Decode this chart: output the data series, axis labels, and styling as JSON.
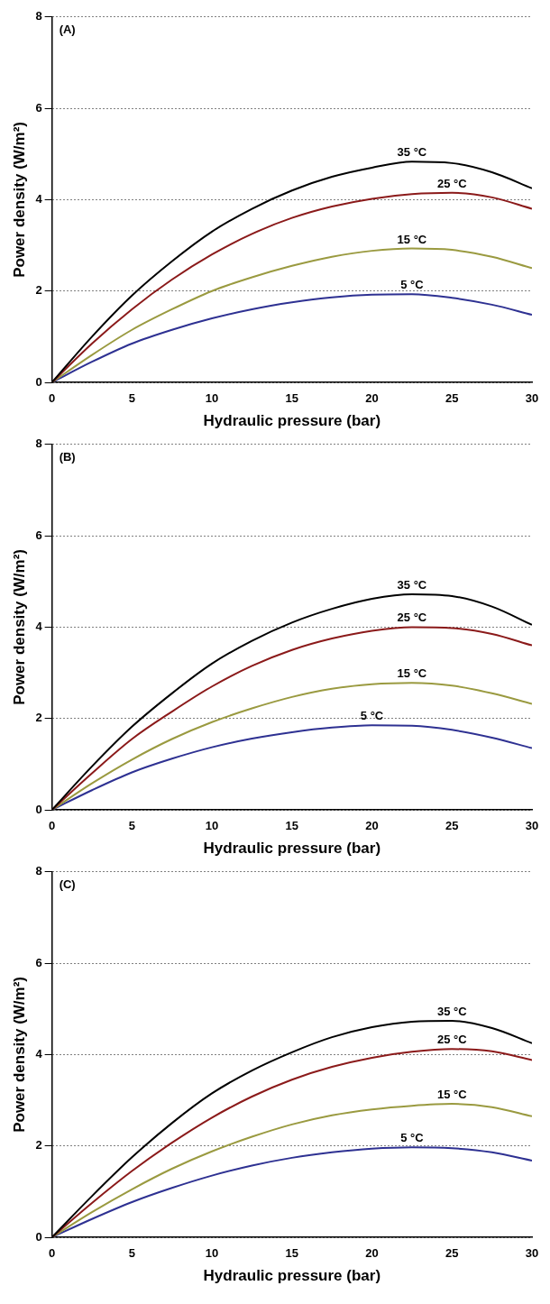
{
  "chart_data": [
    {
      "type": "line",
      "annotations": [
        "(A)"
      ],
      "xlabel": "Hydraulic pressure (bar)",
      "ylabel": "Power density (W/m²)",
      "x": [
        0,
        2.5,
        5,
        7.5,
        10,
        12.5,
        15,
        17.5,
        20,
        22.5,
        25,
        27.5,
        30
      ],
      "xlim": [
        0,
        30
      ],
      "xticks": [
        0,
        5,
        10,
        15,
        20,
        25,
        30
      ],
      "ylim": [
        0,
        8
      ],
      "yticks": [
        0,
        2,
        4,
        6,
        8
      ],
      "grid": "y",
      "series": [
        {
          "name": "35 °C",
          "color": "#000000",
          "values": [
            0,
            1.0,
            1.9,
            2.65,
            3.3,
            3.8,
            4.2,
            4.5,
            4.7,
            4.83,
            4.8,
            4.6,
            4.25
          ]
        },
        {
          "name": "25 °C",
          "color": "#8b1a1a",
          "values": [
            0,
            0.85,
            1.6,
            2.25,
            2.8,
            3.25,
            3.6,
            3.85,
            4.02,
            4.12,
            4.15,
            4.05,
            3.8
          ]
        },
        {
          "name": "15 °C",
          "color": "#9a9a40",
          "values": [
            0,
            0.6,
            1.15,
            1.6,
            2.0,
            2.3,
            2.55,
            2.75,
            2.88,
            2.93,
            2.9,
            2.75,
            2.5
          ]
        },
        {
          "name": "5 °C",
          "color": "#2e3192",
          "values": [
            0,
            0.45,
            0.85,
            1.15,
            1.4,
            1.6,
            1.75,
            1.86,
            1.92,
            1.93,
            1.85,
            1.7,
            1.48
          ]
        }
      ]
    },
    {
      "type": "line",
      "annotations": [
        "(B)"
      ],
      "xlabel": "Hydraulic pressure (bar)",
      "ylabel": "Power density (W/m²)",
      "x": [
        0,
        2.5,
        5,
        7.5,
        10,
        12.5,
        15,
        17.5,
        20,
        22.5,
        25,
        27.5,
        30
      ],
      "xlim": [
        0,
        30
      ],
      "xticks": [
        0,
        5,
        10,
        15,
        20,
        25,
        30
      ],
      "ylim": [
        0,
        8
      ],
      "yticks": [
        0,
        2,
        4,
        6,
        8
      ],
      "grid": "y",
      "series": [
        {
          "name": "35 °C",
          "color": "#000000",
          "values": [
            0,
            0.95,
            1.82,
            2.55,
            3.2,
            3.7,
            4.1,
            4.4,
            4.62,
            4.72,
            4.68,
            4.45,
            4.05
          ]
        },
        {
          "name": "25 °C",
          "color": "#8b1a1a",
          "values": [
            0,
            0.8,
            1.55,
            2.15,
            2.7,
            3.15,
            3.5,
            3.75,
            3.92,
            4.0,
            3.98,
            3.85,
            3.6
          ]
        },
        {
          "name": "15 °C",
          "color": "#9a9a40",
          "values": [
            0,
            0.58,
            1.1,
            1.55,
            1.92,
            2.22,
            2.47,
            2.65,
            2.75,
            2.78,
            2.72,
            2.55,
            2.32
          ]
        },
        {
          "name": "5 °C",
          "color": "#2e3192",
          "values": [
            0,
            0.43,
            0.82,
            1.12,
            1.37,
            1.56,
            1.7,
            1.8,
            1.85,
            1.84,
            1.75,
            1.58,
            1.35
          ]
        }
      ]
    },
    {
      "type": "line",
      "annotations": [
        "(C)"
      ],
      "xlabel": "Hydraulic pressure (bar)",
      "ylabel": "Power density (W/m²)",
      "x": [
        0,
        2.5,
        5,
        7.5,
        10,
        12.5,
        15,
        17.5,
        20,
        22.5,
        25,
        27.5,
        30
      ],
      "xlim": [
        0,
        30
      ],
      "xticks": [
        0,
        5,
        10,
        15,
        20,
        25,
        30
      ],
      "ylim": [
        0,
        8
      ],
      "yticks": [
        0,
        2,
        4,
        6,
        8
      ],
      "grid": "y",
      "series": [
        {
          "name": "35 °C",
          "color": "#000000",
          "values": [
            0,
            0.9,
            1.75,
            2.5,
            3.15,
            3.65,
            4.05,
            4.38,
            4.6,
            4.72,
            4.74,
            4.58,
            4.25
          ]
        },
        {
          "name": "25 °C",
          "color": "#8b1a1a",
          "values": [
            0,
            0.75,
            1.45,
            2.07,
            2.62,
            3.08,
            3.45,
            3.73,
            3.93,
            4.06,
            4.12,
            4.07,
            3.88
          ]
        },
        {
          "name": "15 °C",
          "color": "#9a9a40",
          "values": [
            0,
            0.55,
            1.05,
            1.5,
            1.88,
            2.2,
            2.47,
            2.67,
            2.8,
            2.88,
            2.92,
            2.85,
            2.65
          ]
        },
        {
          "name": "5 °C",
          "color": "#2e3192",
          "values": [
            0,
            0.4,
            0.77,
            1.08,
            1.35,
            1.57,
            1.74,
            1.86,
            1.94,
            1.97,
            1.95,
            1.86,
            1.68
          ]
        }
      ]
    }
  ]
}
